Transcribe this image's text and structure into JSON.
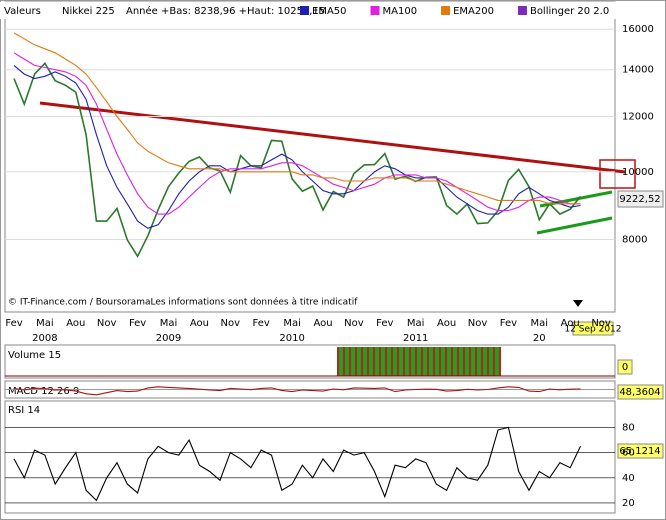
{
  "chart_data": [
    {
      "type": "line",
      "log_scale": true,
      "header_label": "Valeurs",
      "title": "Nikkei 225",
      "subtitle": "Année +Bas: 8238,96 +Haut: 10255,15",
      "footer": "© IT-Finance.com / BoursoramaLes informations sont données à titre indicatif",
      "last_label": "9222,52",
      "date_label": "12 Sep 2012",
      "month_labels": [
        "Fev",
        "Mai",
        "Aou",
        "Nov",
        "Fev",
        "Mai",
        "Aou",
        "Nov",
        "Fev",
        "Mai",
        "Aou",
        "Nov",
        "Fev",
        "Mai",
        "Aou",
        "Nov",
        "Fev",
        "Mai",
        "Aou",
        "Nov"
      ],
      "year_labels": [
        "2008",
        "2009",
        "2010",
        "2011",
        "20"
      ],
      "ylim": [
        6300,
        17500
      ],
      "yticks": [
        8000,
        10000,
        12000,
        14000,
        16000
      ],
      "series": [
        {
          "name": "Nikkei 225",
          "color": "#2a7a2a",
          "values": [
            13600,
            12500,
            13800,
            14300,
            13500,
            13300,
            13000,
            11300,
            8500,
            8500,
            8860,
            7990,
            7570,
            8100,
            8830,
            9520,
            9960,
            10350,
            10500,
            10130,
            10030,
            9350,
            10550,
            10200,
            10130,
            11090,
            11060,
            9770,
            9380,
            9540,
            8820,
            9370,
            9200,
            9940,
            10230,
            10240,
            10620,
            9760,
            9850,
            9690,
            9820,
            9830,
            8950,
            8700,
            8990,
            8430,
            8450,
            8800,
            9720,
            10080,
            9520,
            8540,
            9000,
            8700,
            8840,
            9222.52
          ]
        },
        {
          "name": "EMA50",
          "color": "#1f1fb4",
          "values": [
            14200,
            13800,
            13600,
            13700,
            13900,
            13700,
            13400,
            12700,
            11300,
            10200,
            9500,
            9000,
            8500,
            8300,
            8400,
            8800,
            9300,
            9700,
            10000,
            10200,
            10200,
            10000,
            10100,
            10200,
            10200,
            10400,
            10600,
            10400,
            10000,
            9700,
            9400,
            9300,
            9300,
            9400,
            9700,
            10000,
            10200,
            10100,
            9900,
            9800,
            9800,
            9800,
            9500,
            9200,
            9000,
            8800,
            8700,
            8700,
            8900,
            9300,
            9500,
            9300,
            9100,
            9000,
            8900,
            8950
          ]
        },
        {
          "name": "MA100",
          "color": "#e020e0",
          "values": [
            14800,
            14500,
            14200,
            14100,
            14000,
            13900,
            13700,
            13300,
            12500,
            11500,
            10600,
            9900,
            9300,
            8900,
            8700,
            8700,
            8900,
            9200,
            9500,
            9800,
            10000,
            10100,
            10100,
            10100,
            10100,
            10200,
            10300,
            10300,
            10200,
            10000,
            9800,
            9600,
            9500,
            9400,
            9500,
            9600,
            9800,
            9900,
            9900,
            9900,
            9800,
            9800,
            9700,
            9500,
            9300,
            9100,
            8900,
            8800,
            8800,
            8900,
            9100,
            9200,
            9200,
            9100,
            9000,
            9000
          ]
        },
        {
          "name": "EMA200",
          "color": "#e07a10",
          "values": [
            15800,
            15500,
            15200,
            15000,
            14800,
            14500,
            14200,
            13800,
            13200,
            12600,
            12000,
            11500,
            11000,
            10700,
            10500,
            10300,
            10200,
            10100,
            10100,
            10100,
            10100,
            10000,
            10000,
            10000,
            10000,
            10000,
            10000,
            10000,
            9900,
            9900,
            9800,
            9800,
            9700,
            9700,
            9700,
            9800,
            9800,
            9800,
            9800,
            9700,
            9700,
            9700,
            9600,
            9500,
            9400,
            9300,
            9200,
            9100,
            9100,
            9100,
            9100,
            9100,
            9000,
            9000,
            9000,
            9000
          ]
        }
      ],
      "overlays": [
        {
          "name": "Bollinger 20 2.0",
          "color": "#7b2bbd"
        }
      ]
    },
    {
      "type": "bar",
      "title": "Volume 15",
      "yticks": [
        0
      ]
    },
    {
      "type": "line",
      "title": "MACD 12 26 9",
      "last_label": "48,3604",
      "ylim": [
        -800,
        800
      ],
      "series": [
        {
          "color": "#b01010",
          "values": [
            100,
            -50,
            120,
            80,
            -60,
            -20,
            -150,
            -400,
            -500,
            -300,
            -100,
            -200,
            -150,
            150,
            250,
            200,
            150,
            100,
            30,
            -50,
            -100,
            100,
            50,
            -20,
            100,
            150,
            -80,
            -200,
            -50,
            -100,
            -150,
            50,
            -30,
            150,
            120,
            100,
            150,
            -200,
            -50,
            0,
            30,
            20,
            -150,
            -100,
            20,
            -50,
            0,
            150,
            250,
            200,
            -150,
            -200,
            50,
            -30,
            30,
            48.3604
          ]
        }
      ]
    },
    {
      "type": "line",
      "title": "RSI 14",
      "last_label": "65,1214",
      "ylim": [
        12,
        101
      ],
      "yticks": [
        20,
        40,
        60,
        80
      ],
      "series": [
        {
          "color": "#000000",
          "values": [
            55,
            40,
            62,
            58,
            35,
            48,
            60,
            30,
            22,
            40,
            52,
            35,
            28,
            55,
            65,
            60,
            58,
            70,
            50,
            45,
            38,
            60,
            55,
            48,
            62,
            58,
            30,
            35,
            50,
            40,
            55,
            45,
            62,
            58,
            60,
            45,
            25,
            50,
            48,
            55,
            52,
            35,
            30,
            48,
            40,
            38,
            50,
            78,
            80,
            45,
            30,
            45,
            40,
            52,
            48,
            65.1214
          ]
        }
      ]
    }
  ]
}
